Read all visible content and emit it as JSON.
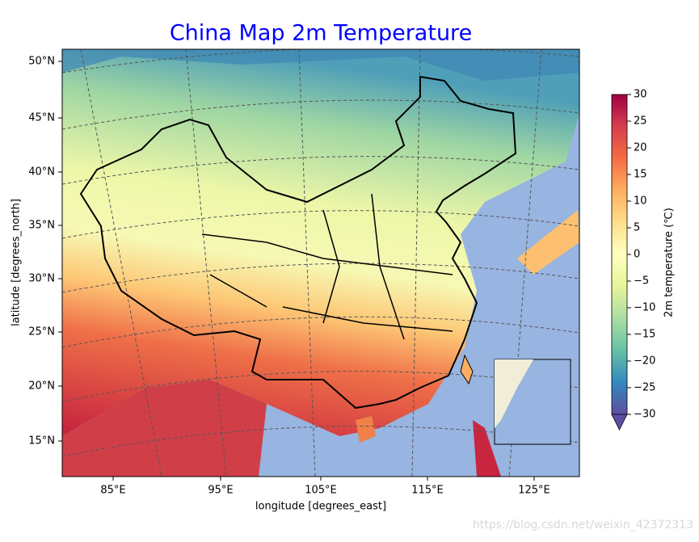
{
  "title": "China Map 2m Temperature",
  "xlabel": "longitude [degrees_east]",
  "ylabel": "latitude [degrees_north]",
  "xticks": [
    "85°E",
    "95°E",
    "105°E",
    "115°E",
    "125°E"
  ],
  "yticks": [
    "50°N",
    "45°N",
    "40°N",
    "35°N",
    "30°N",
    "25°N",
    "20°N",
    "15°N"
  ],
  "colorbar": {
    "label": "2m temperature (℃)",
    "lim": [
      -30,
      30
    ],
    "ticks": [
      30,
      25,
      20,
      15,
      10,
      5,
      0,
      {
        "value": -5,
        "label": "−5"
      },
      {
        "value": -10,
        "label": "−10"
      },
      {
        "value": -15,
        "label": "−15"
      },
      {
        "value": -20,
        "label": "−20"
      },
      {
        "value": -25,
        "label": "−25"
      },
      {
        "value": -30,
        "label": "−30"
      }
    ]
  },
  "watermark": "https://blog.csdn.net/weixin_42372313"
}
